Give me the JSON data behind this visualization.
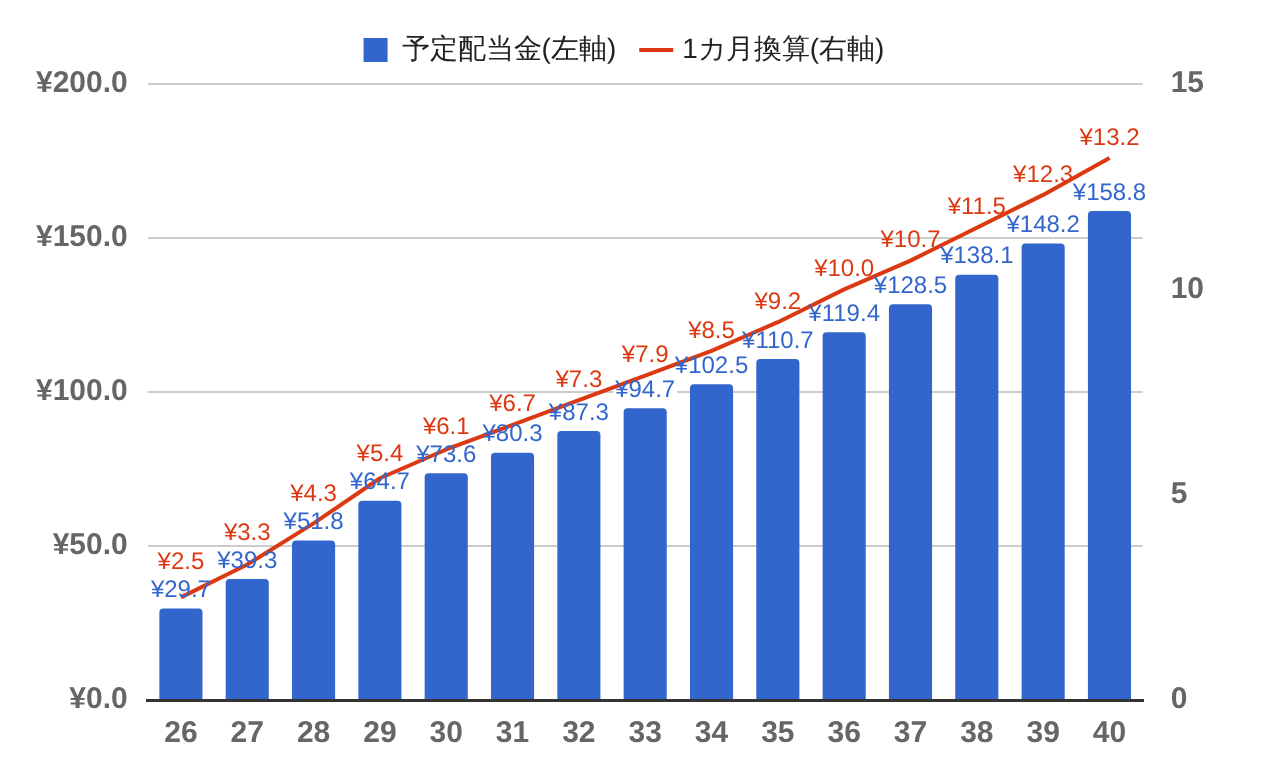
{
  "chart_data": {
    "type": "bar",
    "categories": [
      "26",
      "27",
      "28",
      "29",
      "30",
      "31",
      "32",
      "33",
      "34",
      "35",
      "36",
      "37",
      "38",
      "39",
      "40"
    ],
    "series": [
      {
        "name": "予定配当金(左軸)",
        "color": "#3366cc",
        "values": [
          29.7,
          39.3,
          51.8,
          64.7,
          73.6,
          80.3,
          87.3,
          94.7,
          102.5,
          110.7,
          119.4,
          128.5,
          138.1,
          148.2,
          158.8
        ],
        "value_labels": [
          "¥29.7",
          "¥39.3",
          "¥51.8",
          "¥64.7",
          "¥73.6",
          "¥80.3",
          "¥87.3",
          "¥94.7",
          "¥102.5",
          "¥110.7",
          "¥119.4",
          "¥128.5",
          "¥138.1",
          "¥148.2",
          "¥158.8"
        ]
      },
      {
        "name": "1カ月換算(右軸)",
        "type": "line",
        "axis": "y2",
        "color": "#dc3912",
        "values": [
          2.5,
          3.3,
          4.3,
          5.4,
          6.1,
          6.7,
          7.3,
          7.9,
          8.5,
          9.2,
          10.0,
          10.7,
          11.5,
          12.3,
          13.2
        ],
        "value_labels": [
          "¥2.5",
          "¥3.3",
          "¥4.3",
          "¥5.4",
          "¥6.1",
          "¥6.7",
          "¥7.3",
          "¥7.9",
          "¥8.5",
          "¥9.2",
          "¥10.0",
          "¥10.7",
          "¥11.5",
          "¥12.3",
          "¥13.2"
        ]
      }
    ],
    "ylim": [
      0,
      200
    ],
    "yticks": [
      {
        "value": 0,
        "label": "¥0.0"
      },
      {
        "value": 50,
        "label": "¥50.0"
      },
      {
        "value": 100,
        "label": "¥100.0"
      },
      {
        "value": 150,
        "label": "¥150.0"
      },
      {
        "value": 200,
        "label": "¥200.0"
      }
    ],
    "y2lim": [
      0,
      15
    ],
    "y2ticks": [
      0,
      5,
      10,
      15
    ],
    "grid": "y",
    "legend": "top"
  }
}
